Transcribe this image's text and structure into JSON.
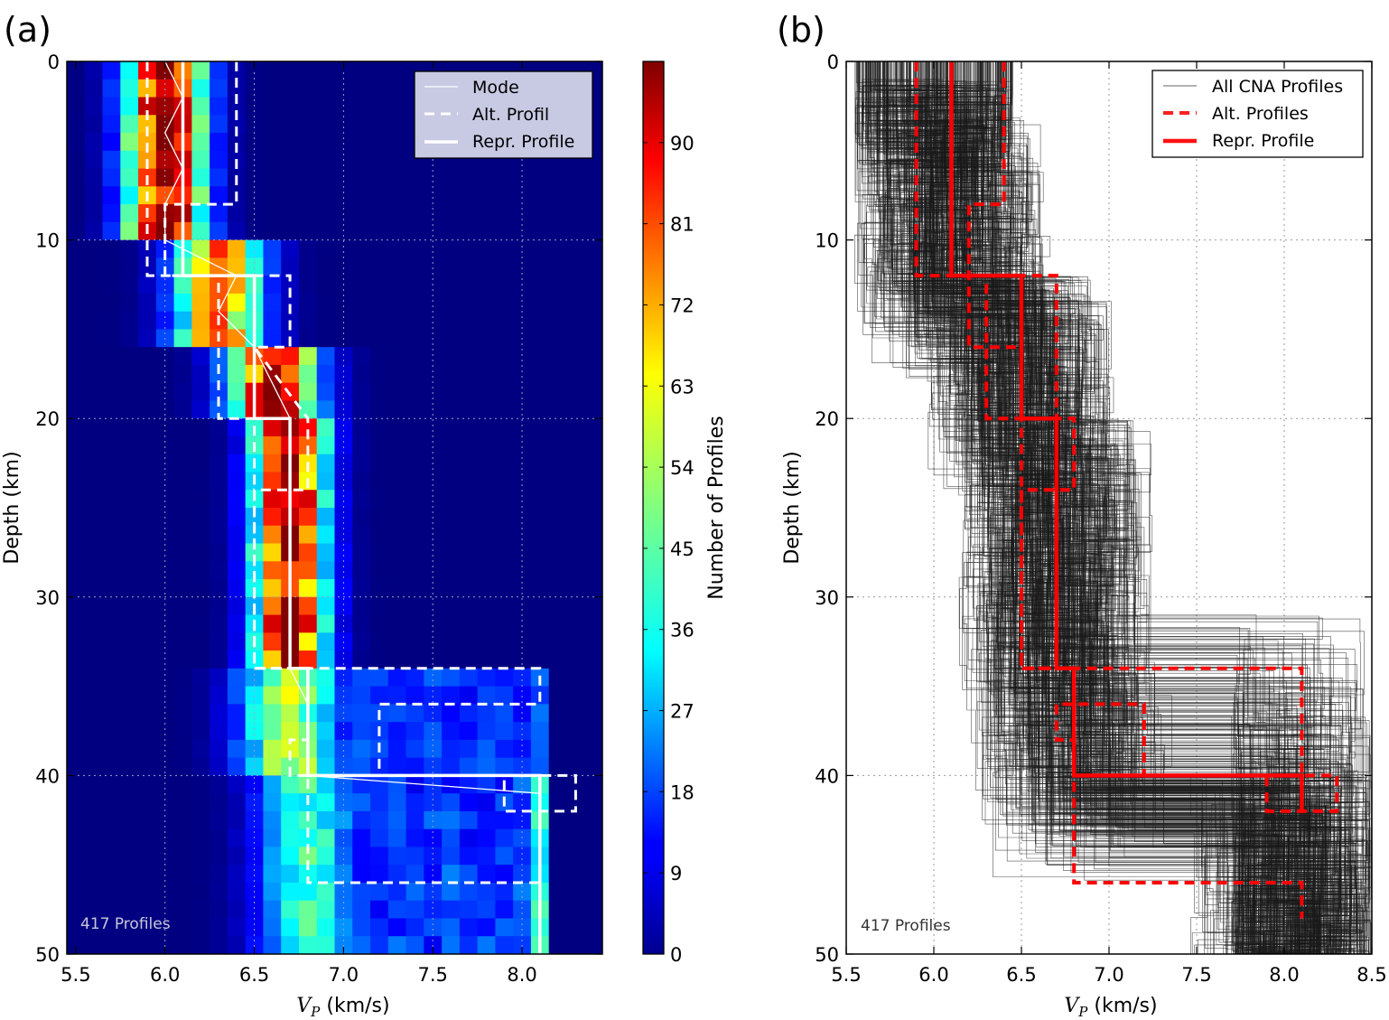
{
  "figure": {
    "panel_a_letter": "(a)",
    "panel_b_letter": "(b)"
  },
  "chart_data": [
    {
      "panel": "(a)",
      "type": "heatmap",
      "xlabel": "V_P (km/s)",
      "xlabel_main": "V",
      "xlabel_sub": "P",
      "xlabel_rest": " (km/s)",
      "ylabel": "Depth (km)",
      "xlim": [
        5.45,
        8.45
      ],
      "ylim": [
        50,
        0
      ],
      "y_inverted": true,
      "x_ticks": [
        "5.5",
        "6.0",
        "6.5",
        "7.0",
        "7.5",
        "8.0"
      ],
      "y_ticks": [
        "0",
        "10",
        "20",
        "30",
        "40",
        "50"
      ],
      "grid": true,
      "annotation": "417 Profiles",
      "colorbar": {
        "label": "Number of Profiles",
        "ticks": [
          "0",
          "9",
          "18",
          "27",
          "36",
          "45",
          "54",
          "63",
          "72",
          "81",
          "90"
        ],
        "range": [
          0,
          99
        ],
        "colormap": "jet"
      },
      "legend": {
        "position": "top-right",
        "entries": [
          "Mode",
          "Alt. Profil",
          "Repr. Profile"
        ]
      },
      "cell_grid": {
        "vp_start": 5.45,
        "vp_step": 0.1,
        "depth_step": 1,
        "columns": 30,
        "rows": 50
      },
      "ridges": [
        {
          "d0": 0,
          "d1": 10,
          "mode_vp": 6.0,
          "mode_count": 98
        },
        {
          "d0": 10,
          "d1": 16,
          "mode_vp": 6.3,
          "mode_count": 72
        },
        {
          "d0": 16,
          "d1": 20,
          "mode_vp": 6.6,
          "mode_count": 92
        },
        {
          "d0": 20,
          "d1": 34,
          "mode_vp": 6.7,
          "mode_count": 98
        },
        {
          "d0": 34,
          "d1": 40,
          "mode_vp": 6.7,
          "mode_count": 55
        },
        {
          "d0": 40,
          "d1": 50,
          "mode_vp": 6.8,
          "mode_count": 42
        }
      ],
      "upper_mantle_band": {
        "vp": 8.1,
        "d0": 34,
        "d1": 50,
        "count": 30
      },
      "series": [
        {
          "name": "Mode",
          "style": "thin-solid",
          "color": "#ffffff",
          "points": [
            [
              6.0,
              0
            ],
            [
              6.1,
              2
            ],
            [
              6.0,
              4
            ],
            [
              6.1,
              6
            ],
            [
              6.0,
              8
            ],
            [
              6.0,
              10
            ],
            [
              6.2,
              11
            ],
            [
              6.4,
              12
            ],
            [
              6.3,
              14
            ],
            [
              6.5,
              16
            ],
            [
              6.6,
              18
            ],
            [
              6.7,
              20
            ],
            [
              6.7,
              34
            ],
            [
              6.8,
              36
            ],
            [
              6.8,
              40
            ],
            [
              8.1,
              41
            ]
          ]
        },
        {
          "name": "Repr. Profile",
          "style": "thick-solid",
          "color": "#ffffff",
          "points": [
            [
              6.1,
              0
            ],
            [
              6.1,
              12
            ],
            [
              6.5,
              12
            ],
            [
              6.5,
              20
            ],
            [
              6.7,
              20
            ],
            [
              6.7,
              34
            ],
            [
              6.8,
              34
            ],
            [
              6.8,
              40
            ],
            [
              8.1,
              40
            ],
            [
              8.1,
              50
            ]
          ]
        },
        {
          "name": "Alt. Profil",
          "style": "dashed",
          "color": "#ffffff",
          "points": [
            [
              5.9,
              0
            ],
            [
              5.9,
              12
            ],
            [
              6.3,
              12
            ],
            [
              6.3,
              20
            ],
            [
              6.5,
              20
            ],
            [
              6.5,
              34
            ],
            [
              6.8,
              34
            ],
            [
              6.8,
              46
            ],
            [
              8.1,
              46
            ],
            [
              8.1,
              50
            ]
          ]
        },
        {
          "name": "Alt. Profil",
          "style": "dashed",
          "color": "#ffffff",
          "points": [
            [
              6.4,
              0
            ],
            [
              6.4,
              8
            ],
            [
              6.0,
              8
            ],
            [
              6.0,
              12
            ],
            [
              6.2,
              12
            ],
            [
              6.7,
              12
            ],
            [
              6.7,
              16
            ],
            [
              6.5,
              16
            ],
            [
              6.8,
              20
            ],
            [
              6.8,
              24
            ],
            [
              6.5,
              24
            ],
            [
              6.5,
              34
            ],
            [
              8.1,
              34
            ],
            [
              8.1,
              36
            ],
            [
              7.2,
              36
            ],
            [
              7.2,
              40
            ],
            [
              8.3,
              40
            ],
            [
              8.3,
              42
            ],
            [
              7.9,
              42
            ],
            [
              7.9,
              40
            ],
            [
              6.7,
              40
            ],
            [
              6.7,
              38
            ],
            [
              6.8,
              38
            ]
          ]
        }
      ]
    },
    {
      "panel": "(b)",
      "type": "line",
      "xlabel": "V_P (km/s)",
      "xlabel_main": "V",
      "xlabel_sub": "P",
      "xlabel_rest": " (km/s)",
      "ylabel": "Depth (km)",
      "xlim": [
        5.5,
        8.5
      ],
      "ylim": [
        50,
        0
      ],
      "y_inverted": true,
      "x_ticks": [
        "5.5",
        "6.0",
        "6.5",
        "7.0",
        "7.5",
        "8.0",
        "8.5"
      ],
      "y_ticks": [
        "0",
        "10",
        "20",
        "30",
        "40",
        "50"
      ],
      "grid": true,
      "annotation": "417 Profiles",
      "profile_count": 417,
      "legend": {
        "position": "top-right",
        "entries": [
          "All CNA Profiles",
          "Alt. Profiles",
          "Repr. Profile"
        ]
      },
      "series": [
        {
          "name": "Repr. Profile",
          "style": "thick-solid",
          "color": "#ff0000",
          "points": [
            [
              6.1,
              0
            ],
            [
              6.1,
              12
            ],
            [
              6.5,
              12
            ],
            [
              6.5,
              20
            ],
            [
              6.7,
              20
            ],
            [
              6.7,
              34
            ],
            [
              6.8,
              34
            ],
            [
              6.8,
              40
            ],
            [
              8.1,
              40
            ],
            [
              8.1,
              42
            ]
          ]
        },
        {
          "name": "Alt. Profiles",
          "style": "dashed",
          "color": "#ff0000",
          "points": [
            [
              5.9,
              0
            ],
            [
              5.9,
              12
            ],
            [
              6.3,
              12
            ],
            [
              6.3,
              20
            ],
            [
              6.5,
              20
            ],
            [
              6.5,
              34
            ],
            [
              6.8,
              34
            ],
            [
              6.8,
              46
            ],
            [
              8.1,
              46
            ],
            [
              8.1,
              48
            ]
          ]
        },
        {
          "name": "Alt. Profiles",
          "style": "dashed",
          "color": "#ff0000",
          "points": [
            [
              6.4,
              0
            ],
            [
              6.4,
              8
            ],
            [
              6.2,
              8
            ],
            [
              6.2,
              16
            ],
            [
              6.5,
              16
            ],
            [
              6.5,
              12
            ],
            [
              6.7,
              12
            ],
            [
              6.7,
              20
            ],
            [
              6.8,
              20
            ],
            [
              6.8,
              24
            ],
            [
              6.5,
              24
            ],
            [
              6.5,
              34
            ],
            [
              8.1,
              34
            ],
            [
              8.1,
              40
            ],
            [
              8.3,
              40
            ],
            [
              8.3,
              42
            ],
            [
              7.9,
              42
            ],
            [
              7.9,
              40
            ],
            [
              7.2,
              40
            ],
            [
              7.2,
              36
            ],
            [
              6.7,
              36
            ],
            [
              6.7,
              38
            ],
            [
              6.8,
              38
            ]
          ]
        }
      ]
    }
  ]
}
